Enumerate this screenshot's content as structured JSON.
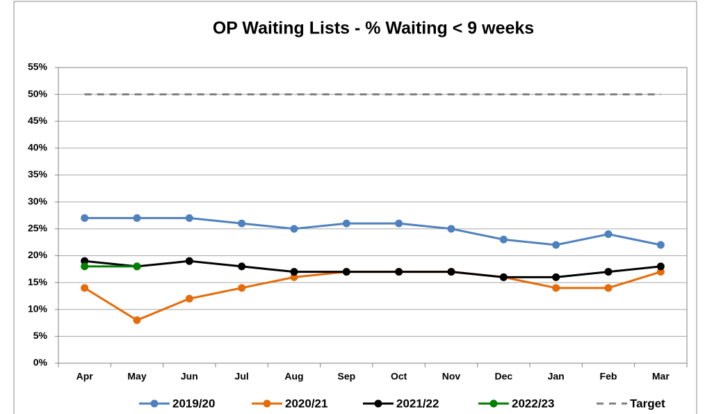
{
  "chart_data": {
    "type": "line",
    "title": "OP Waiting Lists - % Waiting < 9 weeks",
    "categories": [
      "Apr",
      "May",
      "Jun",
      "Jul",
      "Aug",
      "Sep",
      "Oct",
      "Nov",
      "Dec",
      "Jan",
      "Feb",
      "Mar"
    ],
    "series": [
      {
        "name": "2019/20",
        "color": "#4f81bd",
        "values": [
          27,
          27,
          27,
          26,
          25,
          26,
          26,
          25,
          23,
          22,
          24,
          22
        ]
      },
      {
        "name": "2020/21",
        "color": "#e46c0a",
        "values": [
          14,
          8,
          12,
          14,
          16,
          17,
          17,
          17,
          16,
          14,
          14,
          17
        ]
      },
      {
        "name": "2021/22",
        "color": "#000000",
        "values": [
          19,
          18,
          19,
          18,
          17,
          17,
          17,
          17,
          16,
          16,
          17,
          18
        ]
      },
      {
        "name": "2022/23",
        "color": "#008000",
        "values": [
          18,
          18,
          null,
          null,
          null,
          null,
          null,
          null,
          null,
          null,
          null,
          null
        ]
      },
      {
        "name": "Target",
        "color": "#808080",
        "dashed": true,
        "markers": false,
        "values": [
          50,
          50,
          50,
          50,
          50,
          50,
          50,
          50,
          50,
          50,
          50,
          50
        ]
      }
    ],
    "ylim": [
      0,
      55
    ],
    "yticks": [
      {
        "value": 0,
        "label": "0%"
      },
      {
        "value": 5,
        "label": "5%"
      },
      {
        "value": 10,
        "label": "10%"
      },
      {
        "value": 15,
        "label": "15%"
      },
      {
        "value": 20,
        "label": "20%"
      },
      {
        "value": 25,
        "label": "25%"
      },
      {
        "value": 30,
        "label": "30%"
      },
      {
        "value": 35,
        "label": "35%"
      },
      {
        "value": 40,
        "label": "40%"
      },
      {
        "value": 45,
        "label": "45%"
      },
      {
        "value": 50,
        "label": "50%"
      },
      {
        "value": 55,
        "label": "55%"
      }
    ],
    "grid": true,
    "legend": "bottom"
  }
}
